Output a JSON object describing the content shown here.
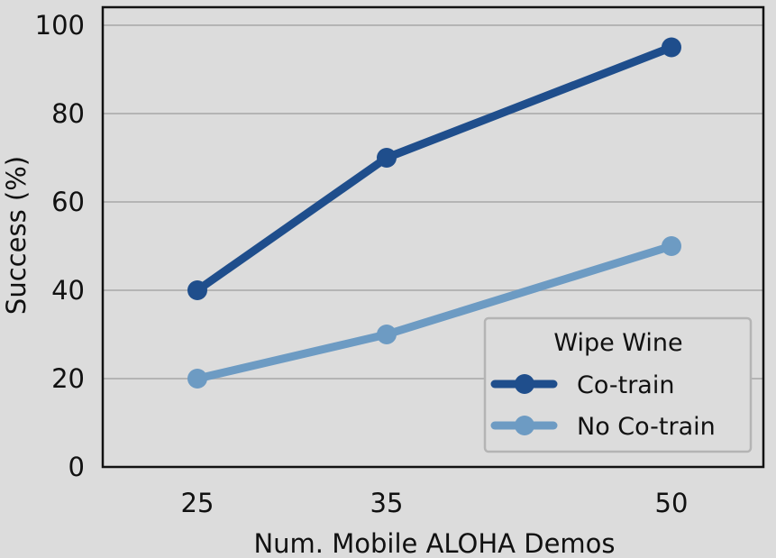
{
  "chart_data": {
    "type": "line",
    "title": "",
    "xlabel": "Num. Mobile ALOHA Demos",
    "ylabel": "Success (%)",
    "categories": [
      "25",
      "35",
      "50"
    ],
    "x": [
      25,
      35,
      50
    ],
    "ylim": [
      0,
      100
    ],
    "yticks": [
      0,
      20,
      40,
      60,
      80,
      100
    ],
    "grid": "horizontal",
    "legend": {
      "title": "Wipe Wine",
      "placement": "lower-right"
    },
    "series": [
      {
        "name": "Co-train",
        "values": [
          40,
          70,
          95
        ],
        "color": "#1f4e8c"
      },
      {
        "name": "No Co-train",
        "values": [
          20,
          30,
          50
        ],
        "color": "#6d9bc3"
      }
    ]
  },
  "colors": {
    "background": "#dcdcdc",
    "grid": "#b4b4b4",
    "axis": "#111111"
  }
}
